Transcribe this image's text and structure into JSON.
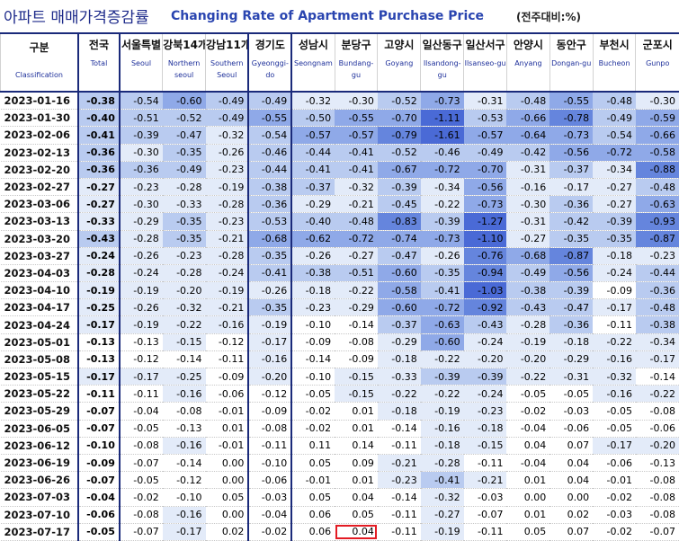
{
  "header": {
    "title_ko": "아파트 매매가격증감률",
    "title_en": "Changing Rate of Apartment Purchase Price",
    "unit": "(전주대비:%)"
  },
  "columns": [
    {
      "ko": "구분",
      "en": "Classification"
    },
    {
      "ko": "전국",
      "en": "Total"
    },
    {
      "ko": "서울특별",
      "en": "Seoul"
    },
    {
      "ko": "강북14개",
      "en": "Northern seoul"
    },
    {
      "ko": "강남11개",
      "en": "Southern Seoul"
    },
    {
      "ko": "경기도",
      "en": "Gyeonggi-do"
    },
    {
      "ko": "성남시",
      "en": "Seongnam"
    },
    {
      "ko": "분당구",
      "en": "Bundang-gu"
    },
    {
      "ko": "고양시",
      "en": "Goyang"
    },
    {
      "ko": "일산동구",
      "en": "Ilsandong-gu"
    },
    {
      "ko": "일산서구",
      "en": "Ilsanseo-gu"
    },
    {
      "ko": "안양시",
      "en": "Anyang"
    },
    {
      "ko": "동안구",
      "en": "Dongan-gu"
    },
    {
      "ko": "부천시",
      "en": "Bucheon"
    },
    {
      "ko": "군포시",
      "en": "Gunpo"
    }
  ],
  "rows": [
    {
      "date": "2023-01-16",
      "values": [
        "-0.38",
        "-0.54",
        "-0.60",
        "-0.49",
        "-0.49",
        "-0.32",
        "-0.30",
        "-0.52",
        "-0.73",
        "-0.31",
        "-0.48",
        "-0.55",
        "-0.48",
        "-0.30"
      ]
    },
    {
      "date": "2023-01-30",
      "values": [
        "-0.40",
        "-0.51",
        "-0.52",
        "-0.49",
        "-0.55",
        "-0.50",
        "-0.55",
        "-0.70",
        "-1.11",
        "-0.53",
        "-0.66",
        "-0.78",
        "-0.49",
        "-0.59"
      ]
    },
    {
      "date": "2023-02-06",
      "values": [
        "-0.41",
        "-0.39",
        "-0.47",
        "-0.32",
        "-0.54",
        "-0.57",
        "-0.57",
        "-0.79",
        "-1.61",
        "-0.57",
        "-0.64",
        "-0.73",
        "-0.54",
        "-0.66"
      ]
    },
    {
      "date": "2023-02-13",
      "values": [
        "-0.36",
        "-0.30",
        "-0.35",
        "-0.26",
        "-0.46",
        "-0.44",
        "-0.41",
        "-0.52",
        "-0.46",
        "-0.49",
        "-0.42",
        "-0.56",
        "-0.72",
        "-0.58"
      ]
    },
    {
      "date": "2023-02-20",
      "values": [
        "-0.36",
        "-0.36",
        "-0.49",
        "-0.23",
        "-0.44",
        "-0.41",
        "-0.41",
        "-0.67",
        "-0.72",
        "-0.70",
        "-0.31",
        "-0.37",
        "-0.34",
        "-0.88"
      ]
    },
    {
      "date": "2023-02-27",
      "values": [
        "-0.27",
        "-0.23",
        "-0.28",
        "-0.19",
        "-0.38",
        "-0.37",
        "-0.32",
        "-0.39",
        "-0.34",
        "-0.56",
        "-0.16",
        "-0.17",
        "-0.27",
        "-0.48"
      ]
    },
    {
      "date": "2023-03-06",
      "values": [
        "-0.27",
        "-0.30",
        "-0.33",
        "-0.28",
        "-0.36",
        "-0.29",
        "-0.21",
        "-0.45",
        "-0.22",
        "-0.73",
        "-0.30",
        "-0.36",
        "-0.27",
        "-0.63"
      ]
    },
    {
      "date": "2023-03-13",
      "values": [
        "-0.33",
        "-0.29",
        "-0.35",
        "-0.23",
        "-0.53",
        "-0.40",
        "-0.48",
        "-0.83",
        "-0.39",
        "-1.27",
        "-0.31",
        "-0.42",
        "-0.39",
        "-0.93"
      ]
    },
    {
      "date": "2023-03-20",
      "values": [
        "-0.43",
        "-0.28",
        "-0.35",
        "-0.21",
        "-0.68",
        "-0.62",
        "-0.72",
        "-0.74",
        "-0.73",
        "-1.10",
        "-0.27",
        "-0.35",
        "-0.35",
        "-0.87"
      ]
    },
    {
      "date": "2023-03-27",
      "values": [
        "-0.24",
        "-0.26",
        "-0.23",
        "-0.28",
        "-0.35",
        "-0.26",
        "-0.27",
        "-0.47",
        "-0.26",
        "-0.76",
        "-0.68",
        "-0.87",
        "-0.18",
        "-0.23"
      ]
    },
    {
      "date": "2023-04-03",
      "values": [
        "-0.28",
        "-0.24",
        "-0.28",
        "-0.24",
        "-0.41",
        "-0.38",
        "-0.51",
        "-0.60",
        "-0.35",
        "-0.94",
        "-0.49",
        "-0.56",
        "-0.24",
        "-0.44"
      ]
    },
    {
      "date": "2023-04-10",
      "values": [
        "-0.19",
        "-0.19",
        "-0.20",
        "-0.19",
        "-0.26",
        "-0.18",
        "-0.22",
        "-0.58",
        "-0.41",
        "-1.03",
        "-0.38",
        "-0.39",
        "-0.09",
        "-0.36"
      ]
    },
    {
      "date": "2023-04-17",
      "values": [
        "-0.25",
        "-0.26",
        "-0.32",
        "-0.21",
        "-0.35",
        "-0.23",
        "-0.29",
        "-0.60",
        "-0.72",
        "-0.92",
        "-0.43",
        "-0.47",
        "-0.17",
        "-0.48"
      ]
    },
    {
      "date": "2023-04-24",
      "values": [
        "-0.17",
        "-0.19",
        "-0.22",
        "-0.16",
        "-0.19",
        "-0.10",
        "-0.14",
        "-0.37",
        "-0.63",
        "-0.43",
        "-0.28",
        "-0.36",
        "-0.11",
        "-0.38"
      ]
    },
    {
      "date": "2023-05-01",
      "values": [
        "-0.13",
        "-0.13",
        "-0.15",
        "-0.12",
        "-0.17",
        "-0.09",
        "-0.08",
        "-0.29",
        "-0.60",
        "-0.24",
        "-0.19",
        "-0.18",
        "-0.22",
        "-0.34"
      ]
    },
    {
      "date": "2023-05-08",
      "values": [
        "-0.13",
        "-0.12",
        "-0.14",
        "-0.11",
        "-0.16",
        "-0.14",
        "-0.09",
        "-0.18",
        "-0.22",
        "-0.20",
        "-0.20",
        "-0.29",
        "-0.16",
        "-0.17"
      ]
    },
    {
      "date": "2023-05-15",
      "values": [
        "-0.17",
        "-0.17",
        "-0.25",
        "-0.09",
        "-0.20",
        "-0.10",
        "-0.15",
        "-0.33",
        "-0.39",
        "-0.39",
        "-0.22",
        "-0.31",
        "-0.32",
        "-0.14"
      ]
    },
    {
      "date": "2023-05-22",
      "values": [
        "-0.11",
        "-0.11",
        "-0.16",
        "-0.06",
        "-0.12",
        "-0.05",
        "-0.15",
        "-0.22",
        "-0.22",
        "-0.24",
        "-0.05",
        "-0.05",
        "-0.16",
        "-0.22"
      ]
    },
    {
      "date": "2023-05-29",
      "values": [
        "-0.07",
        "-0.04",
        "-0.08",
        "-0.01",
        "-0.09",
        "-0.02",
        "0.01",
        "-0.18",
        "-0.19",
        "-0.23",
        "-0.02",
        "-0.03",
        "-0.05",
        "-0.08"
      ]
    },
    {
      "date": "2023-06-05",
      "values": [
        "-0.07",
        "-0.05",
        "-0.13",
        "0.01",
        "-0.08",
        "-0.02",
        "0.01",
        "-0.14",
        "-0.16",
        "-0.18",
        "-0.04",
        "-0.06",
        "-0.05",
        "-0.06"
      ]
    },
    {
      "date": "2023-06-12",
      "values": [
        "-0.10",
        "-0.08",
        "-0.16",
        "-0.01",
        "-0.11",
        "0.11",
        "0.14",
        "-0.11",
        "-0.18",
        "-0.15",
        "0.04",
        "0.07",
        "-0.17",
        "-0.20"
      ]
    },
    {
      "date": "2023-06-19",
      "values": [
        "-0.09",
        "-0.07",
        "-0.14",
        "0.00",
        "-0.10",
        "0.05",
        "0.09",
        "-0.21",
        "-0.28",
        "-0.11",
        "-0.04",
        "0.04",
        "-0.06",
        "-0.13"
      ]
    },
    {
      "date": "2023-06-26",
      "values": [
        "-0.07",
        "-0.05",
        "-0.12",
        "0.00",
        "-0.06",
        "-0.01",
        "0.01",
        "-0.23",
        "-0.41",
        "-0.21",
        "0.01",
        "0.04",
        "-0.01",
        "-0.08"
      ]
    },
    {
      "date": "2023-07-03",
      "values": [
        "-0.04",
        "-0.02",
        "-0.10",
        "0.05",
        "-0.03",
        "0.05",
        "0.04",
        "-0.14",
        "-0.32",
        "-0.03",
        "0.00",
        "0.00",
        "-0.02",
        "-0.08"
      ]
    },
    {
      "date": "2023-07-10",
      "values": [
        "-0.06",
        "-0.08",
        "-0.16",
        "0.00",
        "-0.04",
        "0.06",
        "0.05",
        "-0.11",
        "-0.27",
        "-0.07",
        "0.01",
        "0.02",
        "-0.03",
        "-0.08"
      ]
    },
    {
      "date": "2023-07-17",
      "values": [
        "-0.05",
        "-0.07",
        "-0.17",
        "0.02",
        "-0.02",
        "0.06",
        "0.04",
        "-0.11",
        "-0.19",
        "-0.11",
        "0.05",
        "0.07",
        "-0.02",
        "-0.07"
      ]
    }
  ],
  "highlight": {
    "row": 25,
    "col": 7,
    "color": "#e31b23"
  }
}
